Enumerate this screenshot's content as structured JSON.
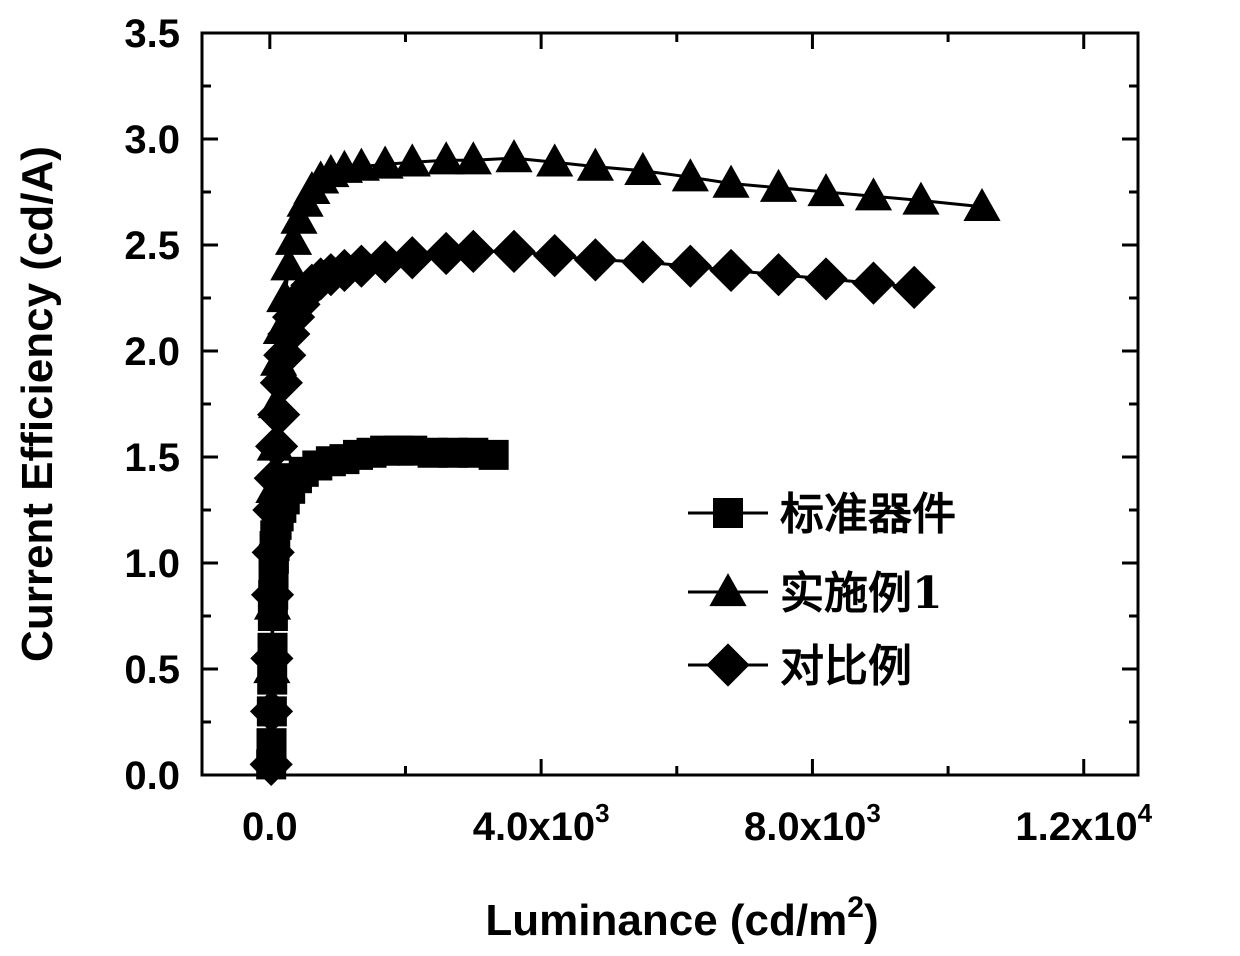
{
  "chart_data": {
    "type": "line",
    "xlabel": "Luminance (cd/m",
    "xlabel_sup": "2",
    "xlabel_close": ")",
    "ylabel": "Current Efficiency (cd/A)",
    "xlim": [
      -1000,
      12800
    ],
    "ylim": [
      0,
      3.5
    ],
    "x_ticks": [
      {
        "value": 0,
        "base": "0.0",
        "exp": ""
      },
      {
        "value": 4000,
        "base": "4.0x10",
        "exp": "3"
      },
      {
        "value": 8000,
        "base": "8.0x10",
        "exp": "3"
      },
      {
        "value": 12000,
        "base": "1.2x10",
        "exp": "4"
      }
    ],
    "y_ticks": [
      "0.0",
      "0.5",
      "1.0",
      "1.5",
      "2.0",
      "2.5",
      "3.0",
      "3.5"
    ],
    "legend_position": "center-right",
    "series": [
      {
        "name": "标准器件",
        "marker": "square",
        "x": [
          20,
          25,
          30,
          35,
          40,
          45,
          50,
          55,
          60,
          70,
          80,
          100,
          130,
          170,
          220,
          300,
          400,
          500,
          700,
          900,
          1100,
          1300,
          1500,
          1700,
          1900,
          2100,
          2400,
          2700,
          3000,
          3300
        ],
        "y": [
          0.05,
          0.15,
          0.3,
          0.45,
          0.6,
          0.75,
          0.85,
          0.95,
          1.02,
          1.08,
          1.13,
          1.18,
          1.22,
          1.26,
          1.3,
          1.35,
          1.4,
          1.43,
          1.46,
          1.48,
          1.49,
          1.51,
          1.52,
          1.53,
          1.53,
          1.53,
          1.52,
          1.52,
          1.52,
          1.51
        ]
      },
      {
        "name": "实施例1",
        "marker": "triangle",
        "x": [
          30,
          40,
          50,
          60,
          80,
          100,
          130,
          170,
          220,
          280,
          350,
          430,
          520,
          620,
          750,
          900,
          1100,
          1350,
          1700,
          2100,
          2600,
          3000,
          3600,
          4200,
          4800,
          5500,
          6200,
          6800,
          7500,
          8200,
          8900,
          9600,
          10500
        ],
        "y": [
          0.5,
          0.8,
          1.1,
          1.35,
          1.55,
          1.75,
          1.95,
          2.1,
          2.25,
          2.4,
          2.52,
          2.62,
          2.7,
          2.76,
          2.81,
          2.84,
          2.86,
          2.87,
          2.88,
          2.89,
          2.9,
          2.9,
          2.91,
          2.89,
          2.87,
          2.85,
          2.82,
          2.79,
          2.77,
          2.75,
          2.73,
          2.71,
          2.68
        ]
      },
      {
        "name": "对比例",
        "marker": "diamond",
        "x": [
          20,
          25,
          30,
          40,
          50,
          60,
          80,
          100,
          130,
          170,
          220,
          280,
          350,
          430,
          520,
          620,
          750,
          900,
          1100,
          1350,
          1700,
          2100,
          2600,
          3000,
          3600,
          4200,
          4800,
          5500,
          6200,
          6800,
          7500,
          8200,
          8900,
          9500
        ],
        "y": [
          0.05,
          0.3,
          0.55,
          0.85,
          1.05,
          1.25,
          1.4,
          1.55,
          1.7,
          1.85,
          1.98,
          2.08,
          2.16,
          2.22,
          2.27,
          2.31,
          2.34,
          2.36,
          2.38,
          2.4,
          2.42,
          2.44,
          2.46,
          2.47,
          2.47,
          2.45,
          2.43,
          2.42,
          2.4,
          2.38,
          2.36,
          2.34,
          2.32,
          2.3
        ]
      }
    ]
  }
}
